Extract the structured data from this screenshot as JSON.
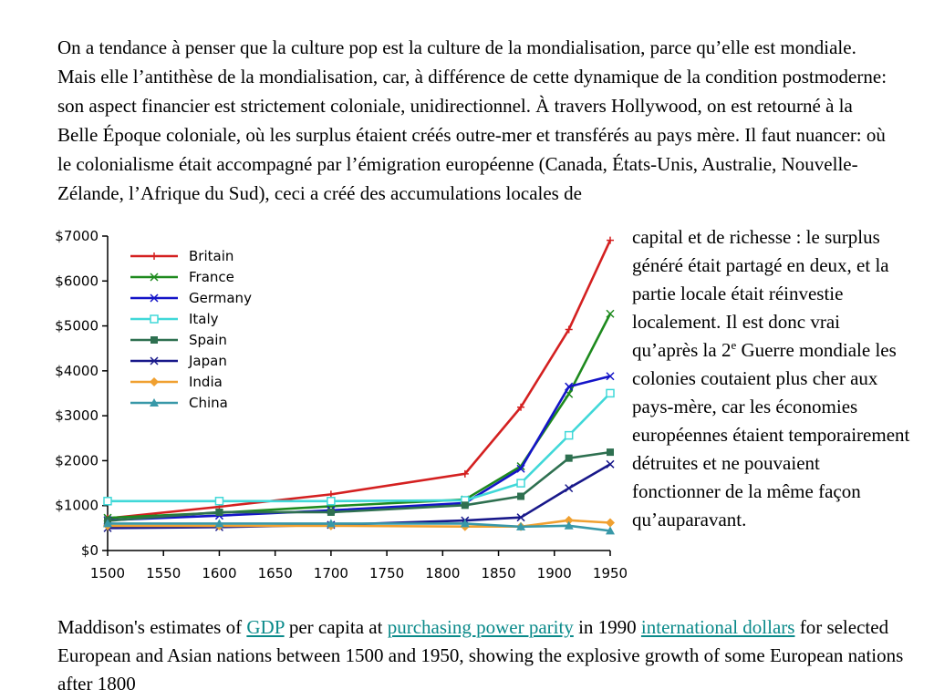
{
  "text": {
    "intro": "On a tendance à penser que la culture pop est la culture de la mondialisation, parce qu’elle est mondiale. Mais elle l’antithèse de la mondialisation, car, à différence de cette dynamique de la condition postmoderne: son aspect financier est strictement coloniale, unidirectionnel. À travers Hollywood, on est retourné à la Belle Époque coloniale, où les surplus étaient créés outre-mer et transférés au pays mère. Il faut nuancer: où le colonialisme était accompagné par l’émigration européenne (Canada, États-Unis, Australie, Nouvelle-Zélande, l’Afrique du Sud), ceci a créé des accumulations locales de",
    "side_part1": "capital et de richesse : le surplus généré était partagé en deux, et la partie locale était réinvestie localement. Il est donc vrai qu’après la 2",
    "side_sup": "e",
    "side_part2": " Guerre mondiale les colonies coutaient plus cher aux pays-mère, car les économies européennes étaient temporairement détruites et ne pouvaient fonctionner de la même façon qu’auparavant."
  },
  "caption": {
    "part1": "Maddison's estimates of ",
    "link_gdp": "GDP",
    "part2": " per capita at ",
    "link_ppp": "purchasing power parity",
    "part3": " in 1990 ",
    "link_dollars": "international dollars",
    "part4": " for selected European and Asian nations between 1500 and 1950, showing the explosive growth of some European nations after 1800"
  },
  "chart_data": {
    "type": "line",
    "title": "",
    "xlabel": "",
    "ylabel": "",
    "xlim": [
      1500,
      1950
    ],
    "ylim": [
      0,
      7000
    ],
    "x_ticks": [
      1500,
      1550,
      1600,
      1650,
      1700,
      1750,
      1800,
      1850,
      1900,
      1950
    ],
    "y_ticks": [
      0,
      1000,
      2000,
      3000,
      4000,
      5000,
      6000,
      7000
    ],
    "y_tick_labels": [
      "$0",
      "$1000",
      "$2000",
      "$3000",
      "$4000",
      "$5000",
      "$6000",
      "$7000"
    ],
    "legend_position": "top-left",
    "grid": false,
    "series": [
      {
        "name": "Britain",
        "color": "#d42020",
        "marker": "plus",
        "points": [
          [
            1500,
            714
          ],
          [
            1600,
            974
          ],
          [
            1700,
            1250
          ],
          [
            1820,
            1707
          ],
          [
            1870,
            3191
          ],
          [
            1913,
            4921
          ],
          [
            1950,
            6907
          ]
        ]
      },
      {
        "name": "France",
        "color": "#1e8a1e",
        "marker": "x",
        "points": [
          [
            1500,
            727
          ],
          [
            1600,
            841
          ],
          [
            1700,
            986
          ],
          [
            1820,
            1135
          ],
          [
            1870,
            1876
          ],
          [
            1913,
            3485
          ],
          [
            1950,
            5270
          ]
        ]
      },
      {
        "name": "Germany",
        "color": "#1414c8",
        "marker": "x",
        "points": [
          [
            1500,
            676
          ],
          [
            1600,
            777
          ],
          [
            1700,
            894
          ],
          [
            1820,
            1058
          ],
          [
            1870,
            1821
          ],
          [
            1913,
            3648
          ],
          [
            1950,
            3881
          ]
        ]
      },
      {
        "name": "Italy",
        "color": "#40d8d8",
        "marker": "square-open",
        "points": [
          [
            1500,
            1100
          ],
          [
            1600,
            1100
          ],
          [
            1700,
            1100
          ],
          [
            1820,
            1117
          ],
          [
            1870,
            1499
          ],
          [
            1913,
            2564
          ],
          [
            1950,
            3502
          ]
        ]
      },
      {
        "name": "Spain",
        "color": "#2e7050",
        "marker": "square",
        "points": [
          [
            1500,
            661
          ],
          [
            1600,
            853
          ],
          [
            1700,
            853
          ],
          [
            1820,
            1008
          ],
          [
            1870,
            1207
          ],
          [
            1913,
            2056
          ],
          [
            1950,
            2189
          ]
        ]
      },
      {
        "name": "Japan",
        "color": "#18188a",
        "marker": "x",
        "points": [
          [
            1500,
            500
          ],
          [
            1600,
            520
          ],
          [
            1700,
            570
          ],
          [
            1820,
            669
          ],
          [
            1870,
            737
          ],
          [
            1913,
            1387
          ],
          [
            1950,
            1921
          ]
        ]
      },
      {
        "name": "India",
        "color": "#f0a030",
        "marker": "diamond",
        "points": [
          [
            1500,
            550
          ],
          [
            1600,
            550
          ],
          [
            1700,
            550
          ],
          [
            1820,
            533
          ],
          [
            1870,
            533
          ],
          [
            1913,
            673
          ],
          [
            1950,
            619
          ]
        ]
      },
      {
        "name": "China",
        "color": "#3898a8",
        "marker": "triangle",
        "points": [
          [
            1500,
            600
          ],
          [
            1600,
            600
          ],
          [
            1700,
            600
          ],
          [
            1820,
            600
          ],
          [
            1870,
            530
          ],
          [
            1913,
            552
          ],
          [
            1950,
            439
          ]
        ]
      }
    ]
  }
}
